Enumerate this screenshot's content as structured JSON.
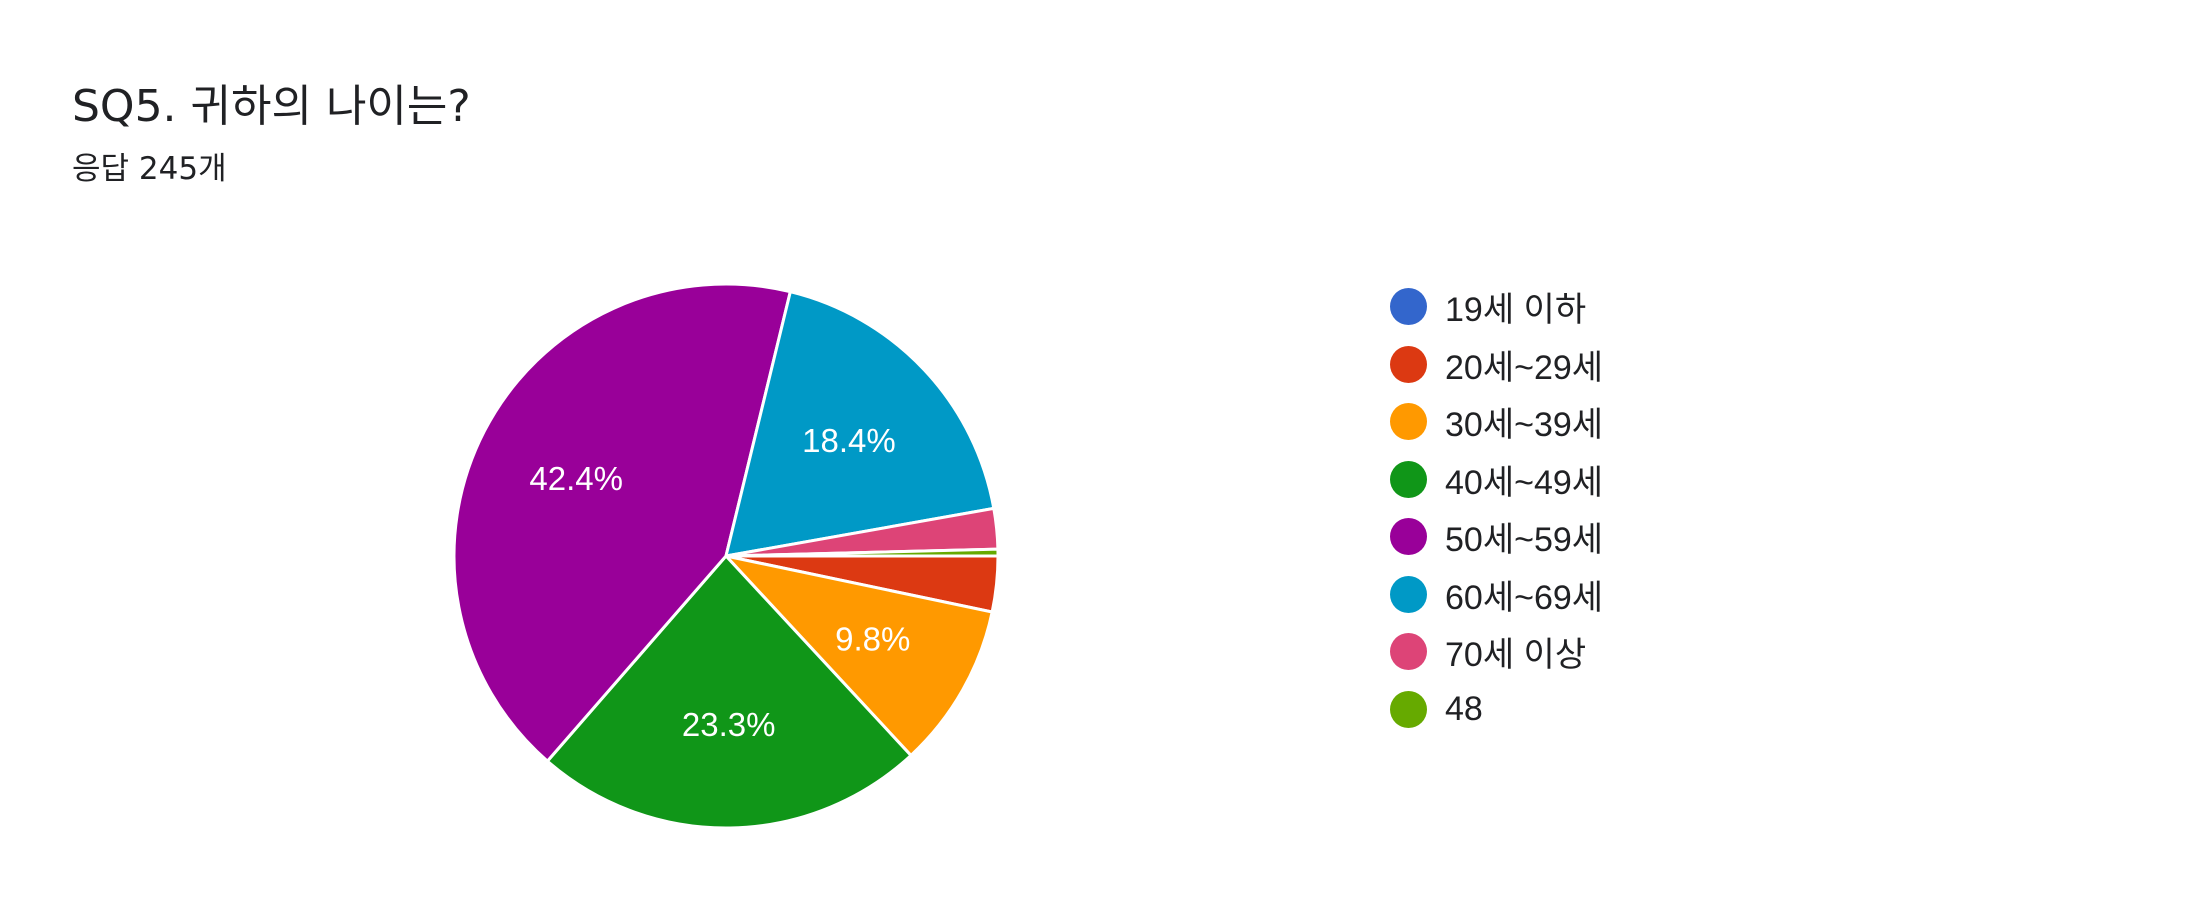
{
  "title": "SQ5. 귀하의 나이는?",
  "subtitle": "응답 245개",
  "chart_data": {
    "type": "pie",
    "title": "SQ5. 귀하의 나이는?",
    "subtitle": "응답 245개",
    "legend_position": "right",
    "slices": [
      {
        "label": "19세 이하",
        "percent": 0.0,
        "color": "#3366cc"
      },
      {
        "label": "20세~29세",
        "percent": 3.3,
        "color": "#dc3912"
      },
      {
        "label": "30세~39세",
        "percent": 9.8,
        "color": "#ff9900",
        "data_label": "9.8%"
      },
      {
        "label": "40세~49세",
        "percent": 23.3,
        "color": "#109618",
        "data_label": "23.3%"
      },
      {
        "label": "50세~59세",
        "percent": 42.4,
        "color": "#990099",
        "data_label": "42.4%"
      },
      {
        "label": "60세~69세",
        "percent": 18.4,
        "color": "#0099c6",
        "data_label": "18.4%"
      },
      {
        "label": "70세 이상",
        "percent": 2.4,
        "color": "#dd4477"
      },
      {
        "label": "48",
        "percent": 0.4,
        "color": "#66aa00"
      }
    ]
  }
}
